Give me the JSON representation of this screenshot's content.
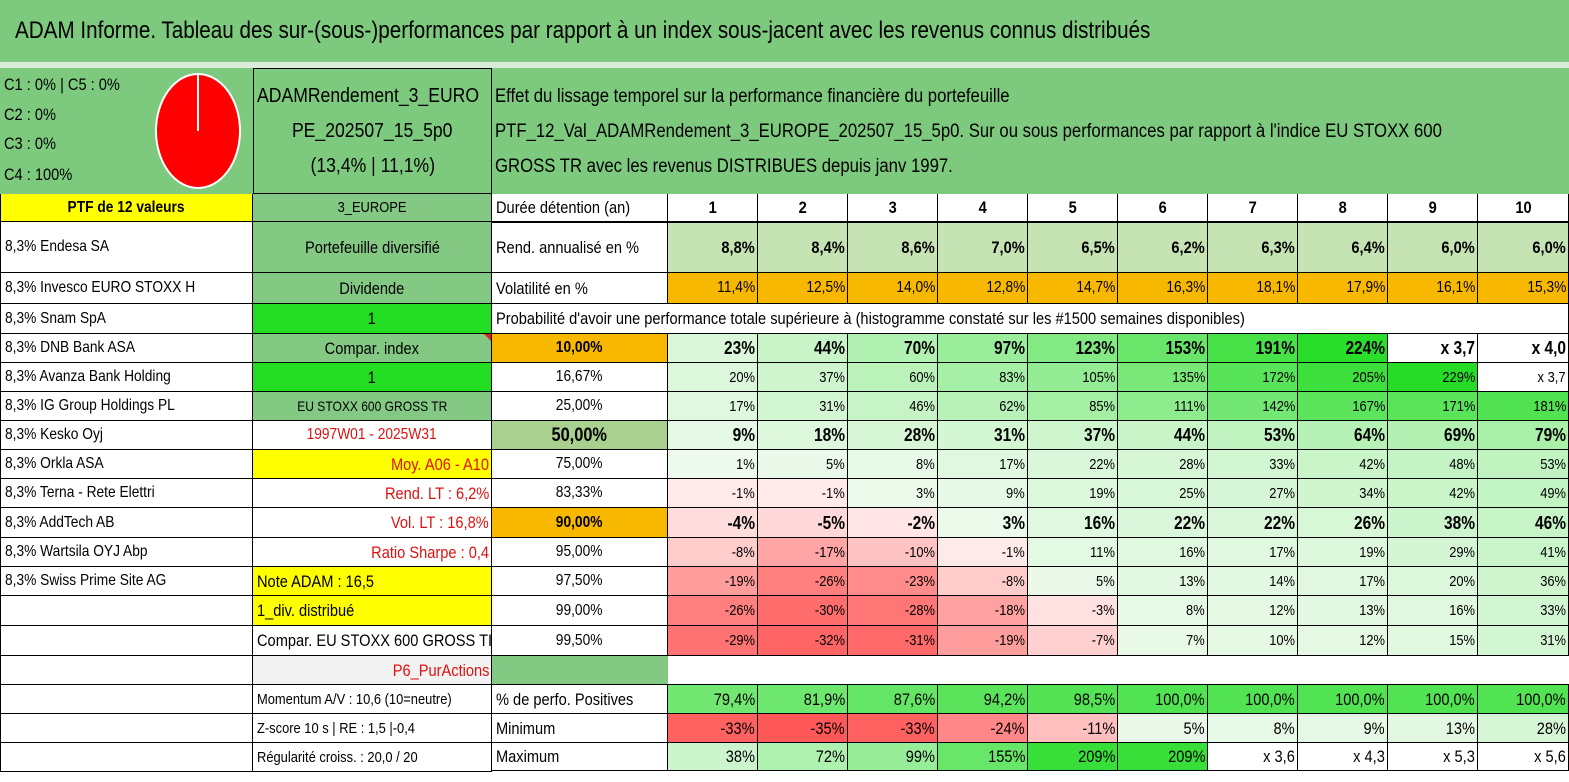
{
  "title": "ADAM Informe. Tableau des sur-(sous-)performances par rapport à un index sous-jacent avec les revenus connus distribués",
  "colors": {
    "header_green": "#7dc97d",
    "yellow": "#ffff00",
    "bright_green": "#22dd22",
    "orange": "#f9b800",
    "red_text": "#e01010",
    "pie_red": "#ff0000"
  },
  "pie": {
    "icon": "pie-chart-icon",
    "lines": [
      "C1 : 0% | C5 : 0%",
      "C2 : 0%",
      "C3 : 0%",
      "C4 : 100%"
    ],
    "c4_share": 100
  },
  "portfolio_box": {
    "lines": [
      "ADAMRendement_3_EURO",
      "PE_202507_15_5p0",
      "(13,4% | 11,1%)"
    ]
  },
  "description": {
    "lines": [
      "Effet du lissage temporel sur la performance financière du portefeuille",
      "PTF_12_Val_ADAMRendement_3_EUROPE_202507_15_5p0. Sur ou sous performances par rapport à l'indice EU STOXX 600",
      "GROSS TR avec les revenus DISTRIBUES depuis janv 1997."
    ]
  },
  "left_col": {
    "header": "PTF de 12 valeurs",
    "items": [
      "8,3% Endesa SA",
      "8,3% Invesco EURO STOXX H",
      "8,3% Snam SpA",
      "8,3% DNB Bank ASA",
      "8,3% Avanza Bank Holding",
      "8,3% IG Group Holdings PL",
      "8,3% Kesko Oyj",
      "8,3% Orkla ASA",
      "8,3% Terna - Rete Elettri",
      "8,3% AddTech AB",
      "8,3% Wartsila OYJ Abp",
      "8,3% Swiss Prime Site AG"
    ]
  },
  "info_col": {
    "header": "3_EUROPE",
    "portefeuille": "Portefeuille diversifié",
    "dividende": "Dividende",
    "dividende_val": "1",
    "compar_index": "Compar. index",
    "compar_index_val": "1",
    "index_name": "EU STOXX 600 GROSS TR",
    "period": "1997W01 - 2025W31",
    "moy": "Moy. A06 - A10",
    "rend_lt": "Rend. LT : 6,2%",
    "vol_lt": "Vol. LT : 16,8%",
    "sharpe": "Ratio Sharpe : 0,4",
    "note": "Note ADAM : 16,5",
    "div_distrib": "1_div. distribué",
    "compar_eu": "Compar. EU STOXX 600 GROSS TI",
    "p6": "P6_PurActions",
    "momentum": "Momentum A/V : 10,6 (10=neutre)",
    "zscore": "Z-score 10 s | RE : 1,5 |-0,4",
    "regularite": "Régularité croiss. : 20,0 / 20"
  },
  "table": {
    "duree_label": "Durée détention (an)",
    "years": [
      "1",
      "2",
      "3",
      "4",
      "5",
      "6",
      "7",
      "8",
      "9",
      "10"
    ],
    "rend_label": "Rend. annualisé en %",
    "rend": [
      "8,8%",
      "8,4%",
      "8,6%",
      "7,0%",
      "6,5%",
      "6,2%",
      "6,3%",
      "6,4%",
      "6,0%",
      "6,0%"
    ],
    "vol_label": "Volatilité en %",
    "vol": [
      "11,4%",
      "12,5%",
      "14,0%",
      "12,8%",
      "14,7%",
      "16,3%",
      "18,1%",
      "17,9%",
      "16,1%",
      "15,3%"
    ],
    "prob_title": "Probabilité d'avoir une performance totale supérieure à (histogramme constaté sur les #1500 semaines disponibles)",
    "prob_rows": [
      {
        "label": "10,00%",
        "values": [
          "23%",
          "44%",
          "70%",
          "97%",
          "123%",
          "153%",
          "191%",
          "224%",
          "x 3,7",
          "x 4,0"
        ]
      },
      {
        "label": "16,67%",
        "values": [
          "20%",
          "37%",
          "60%",
          "83%",
          "105%",
          "135%",
          "172%",
          "205%",
          "229%",
          "x 3,7"
        ]
      },
      {
        "label": "25,00%",
        "values": [
          "17%",
          "31%",
          "46%",
          "62%",
          "85%",
          "111%",
          "142%",
          "167%",
          "171%",
          "181%"
        ]
      },
      {
        "label": "50,00%",
        "values": [
          "9%",
          "18%",
          "28%",
          "31%",
          "37%",
          "44%",
          "53%",
          "64%",
          "69%",
          "79%"
        ]
      },
      {
        "label": "75,00%",
        "values": [
          "1%",
          "5%",
          "8%",
          "17%",
          "22%",
          "28%",
          "33%",
          "42%",
          "48%",
          "53%"
        ]
      },
      {
        "label": "83,33%",
        "values": [
          "-1%",
          "-1%",
          "3%",
          "9%",
          "19%",
          "25%",
          "27%",
          "34%",
          "42%",
          "49%"
        ]
      },
      {
        "label": "90,00%",
        "values": [
          "-4%",
          "-5%",
          "-2%",
          "3%",
          "16%",
          "22%",
          "22%",
          "26%",
          "38%",
          "46%"
        ]
      },
      {
        "label": "95,00%",
        "values": [
          "-8%",
          "-17%",
          "-10%",
          "-1%",
          "11%",
          "16%",
          "17%",
          "19%",
          "29%",
          "41%"
        ]
      },
      {
        "label": "97,50%",
        "values": [
          "-19%",
          "-26%",
          "-23%",
          "-8%",
          "5%",
          "13%",
          "14%",
          "17%",
          "20%",
          "36%"
        ]
      },
      {
        "label": "99,00%",
        "values": [
          "-26%",
          "-30%",
          "-28%",
          "-18%",
          "-3%",
          "8%",
          "12%",
          "13%",
          "16%",
          "33%"
        ]
      },
      {
        "label": "99,50%",
        "values": [
          "-29%",
          "-32%",
          "-31%",
          "-19%",
          "-7%",
          "7%",
          "10%",
          "12%",
          "15%",
          "31%"
        ]
      }
    ],
    "pos_label": "% de perfo. Positives",
    "pos": [
      "79,4%",
      "81,9%",
      "87,6%",
      "94,2%",
      "98,5%",
      "100,0%",
      "100,0%",
      "100,0%",
      "100,0%",
      "100,0%"
    ],
    "min_label": "Minimum",
    "min": [
      "-33%",
      "-35%",
      "-33%",
      "-24%",
      "-11%",
      "5%",
      "8%",
      "9%",
      "13%",
      "28%"
    ],
    "max_label": "Maximum",
    "max": [
      "38%",
      "72%",
      "99%",
      "155%",
      "209%",
      "209%",
      "x 3,6",
      "x 4,3",
      "x 5,3",
      "x 5,6"
    ]
  }
}
